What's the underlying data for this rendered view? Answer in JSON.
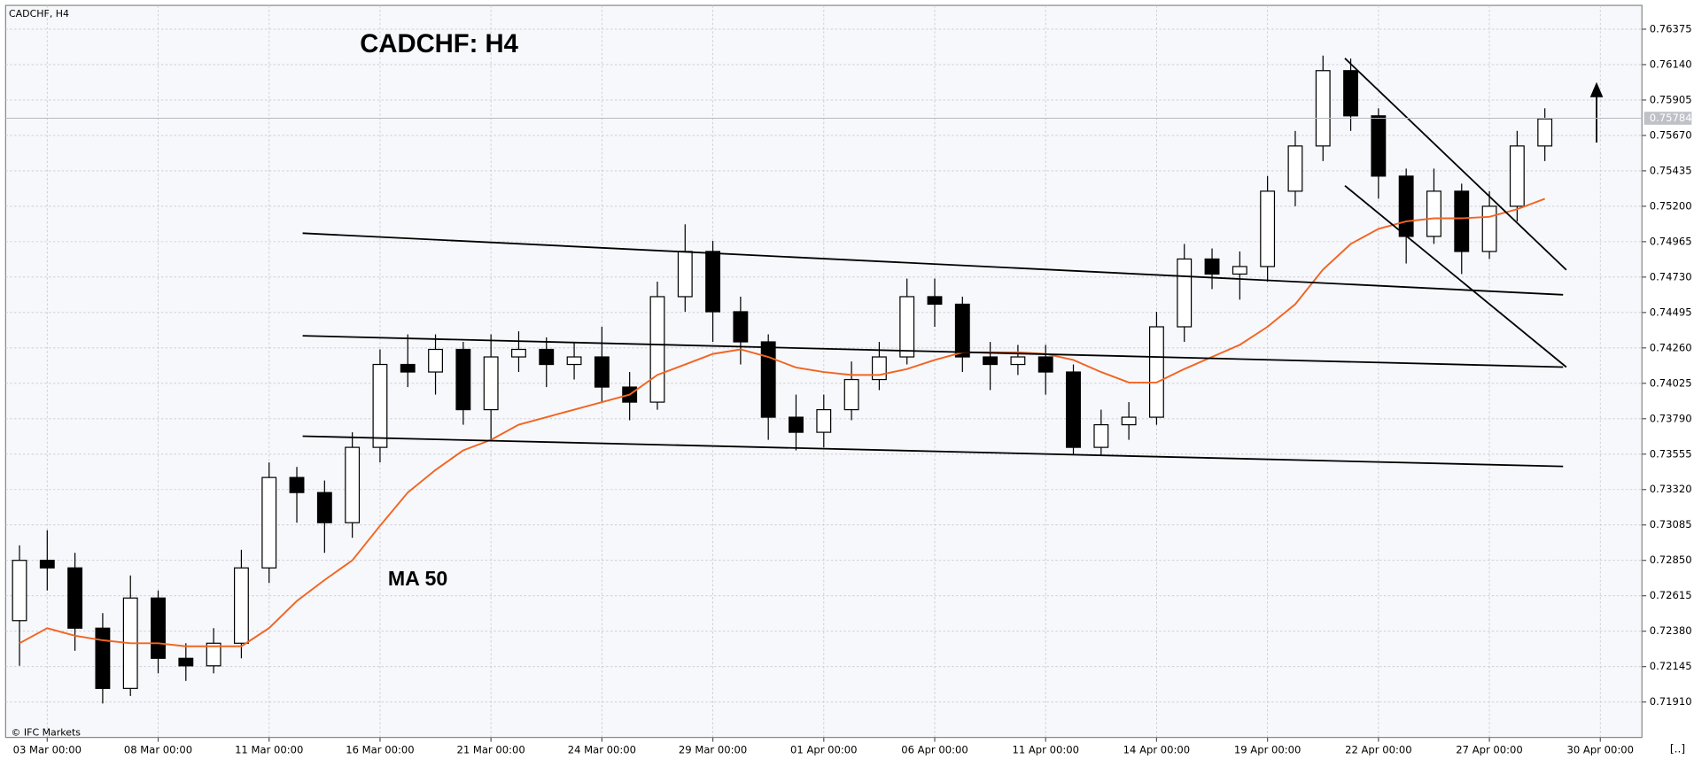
{
  "chart_data": {
    "type": "candlestick",
    "instrument_label": "CADCHF, H4",
    "title": "CADCHF: H4",
    "annotation": "MA 50",
    "copyright": "© IFC Markets",
    "corner_label": "[..]",
    "categories": [
      null,
      "03 Mar 00:00",
      null,
      null,
      null,
      "08 Mar 00:00",
      null,
      null,
      null,
      "11 Mar 00:00",
      null,
      null,
      null,
      "16 Mar 00:00",
      null,
      null,
      null,
      "21 Mar 00:00",
      null,
      null,
      null,
      "24 Mar 00:00",
      null,
      null,
      null,
      "29 Mar 00:00",
      null,
      null,
      null,
      "01 Apr 00:00",
      null,
      null,
      null,
      "06 Apr 00:00",
      null,
      null,
      null,
      "11 Apr 00:00",
      null,
      null,
      null,
      "14 Apr 00:00",
      null,
      null,
      null,
      "19 Apr 00:00",
      null,
      null,
      null,
      "22 Apr 00:00",
      null,
      null,
      null,
      "27 Apr 00:00",
      null,
      null,
      null,
      "30 Apr 00:00",
      null
    ],
    "open": [
      0.7245,
      0.7285,
      0.728,
      0.724,
      0.72,
      0.726,
      0.722,
      0.7215,
      0.723,
      0.728,
      0.734,
      0.733,
      0.731,
      0.736,
      0.7415,
      0.741,
      0.7425,
      0.7385,
      0.742,
      0.7425,
      0.7415,
      0.742,
      0.74,
      0.739,
      0.746,
      0.749,
      0.745,
      0.743,
      0.738,
      0.737,
      0.7385,
      0.7405,
      0.742,
      0.746,
      0.7455,
      0.742,
      0.7415,
      0.742,
      0.741,
      0.736,
      0.7375,
      0.738,
      0.744,
      0.7485,
      0.7475,
      0.748,
      0.753,
      0.756,
      0.761,
      0.758,
      0.754,
      0.75,
      0.753,
      0.749,
      0.752,
      0.756,
      null,
      null,
      null
    ],
    "high": [
      0.7295,
      0.7305,
      0.729,
      0.725,
      0.7275,
      0.7265,
      0.723,
      0.724,
      0.7292,
      0.735,
      0.7347,
      0.7338,
      0.737,
      0.7425,
      0.7435,
      0.7435,
      0.743,
      0.7435,
      0.7437,
      0.7433,
      0.743,
      0.744,
      0.741,
      0.747,
      0.7508,
      0.7497,
      0.746,
      0.7435,
      0.7395,
      0.7395,
      0.7417,
      0.743,
      0.7472,
      0.7472,
      0.746,
      0.743,
      0.7428,
      0.7428,
      0.7415,
      0.7385,
      0.739,
      0.745,
      0.7495,
      0.7492,
      0.749,
      0.754,
      0.757,
      0.762,
      0.7618,
      0.7585,
      0.7545,
      0.7545,
      0.7535,
      0.753,
      0.757,
      0.7585,
      null,
      null,
      null
    ],
    "low": [
      0.7215,
      0.7265,
      0.7225,
      0.719,
      0.7195,
      0.721,
      0.7205,
      0.721,
      0.722,
      0.727,
      0.731,
      0.729,
      0.73,
      0.735,
      0.74,
      0.7395,
      0.7375,
      0.7365,
      0.741,
      0.74,
      0.7405,
      0.739,
      0.7378,
      0.7385,
      0.745,
      0.743,
      0.7415,
      0.7365,
      0.7358,
      0.736,
      0.7378,
      0.7398,
      0.7415,
      0.744,
      0.741,
      0.7398,
      0.7408,
      0.7395,
      0.7355,
      0.7355,
      0.7365,
      0.7375,
      0.743,
      0.7465,
      0.7458,
      0.747,
      0.752,
      0.755,
      0.757,
      0.7525,
      0.7482,
      0.7495,
      0.7475,
      0.7485,
      0.751,
      0.755,
      null,
      null,
      null
    ],
    "close": [
      0.7285,
      0.728,
      0.724,
      0.72,
      0.726,
      0.722,
      0.7215,
      0.723,
      0.728,
      0.734,
      0.733,
      0.731,
      0.736,
      0.7415,
      0.741,
      0.7425,
      0.7385,
      0.742,
      0.7425,
      0.7415,
      0.742,
      0.74,
      0.739,
      0.746,
      0.749,
      0.745,
      0.743,
      0.738,
      0.737,
      0.7385,
      0.7405,
      0.742,
      0.746,
      0.7455,
      0.742,
      0.7415,
      0.742,
      0.741,
      0.736,
      0.7375,
      0.738,
      0.744,
      0.7485,
      0.7475,
      0.748,
      0.753,
      0.756,
      0.761,
      0.758,
      0.754,
      0.75,
      0.753,
      0.749,
      0.752,
      0.756,
      0.7578,
      null,
      null,
      null
    ],
    "ma50": [
      0.723,
      0.724,
      0.7235,
      0.7232,
      0.723,
      0.723,
      0.7228,
      0.7228,
      0.7228,
      0.724,
      0.7258,
      0.7272,
      0.7285,
      0.7308,
      0.733,
      0.7345,
      0.7358,
      0.7365,
      0.7375,
      0.738,
      0.7385,
      0.739,
      0.7395,
      0.7408,
      0.7415,
      0.7422,
      0.7425,
      0.742,
      0.7413,
      0.741,
      0.7408,
      0.7408,
      0.7412,
      0.7418,
      0.7423,
      0.7423,
      0.7423,
      0.7422,
      0.7418,
      0.741,
      0.7403,
      0.7403,
      0.7412,
      0.742,
      0.7428,
      0.744,
      0.7455,
      0.7478,
      0.7495,
      0.7505,
      0.751,
      0.7512,
      0.7512,
      0.7513,
      0.7518,
      0.7525,
      null,
      null,
      null
    ],
    "ma_color": "#f26522",
    "up_color": "#ffffff",
    "down_color": "#000000",
    "last_price": 0.75784,
    "ylim": [
      0.71675,
      0.76533
    ],
    "yticks": [
      {
        "value": 0.7191,
        "label": "0.71910"
      },
      0.72145,
      {
        "value": 0.7238,
        "label": "0.72380"
      },
      0.72615,
      {
        "value": 0.7285,
        "label": "0.72850"
      },
      0.73085,
      {
        "value": 0.7332,
        "label": "0.73320"
      },
      0.73555,
      {
        "value": 0.7379,
        "label": "0.73790"
      },
      0.74025,
      {
        "value": 0.7426,
        "label": "0.74260"
      },
      0.74495,
      {
        "value": 0.7473,
        "label": "0.74730"
      },
      0.74965,
      {
        "value": 0.752,
        "label": "0.75200"
      },
      0.75435,
      {
        "value": 0.7567,
        "label": "0.75670"
      },
      0.75905,
      {
        "value": 0.7614,
        "label": "0.76140"
      },
      0.76375
    ],
    "grid": true
  }
}
